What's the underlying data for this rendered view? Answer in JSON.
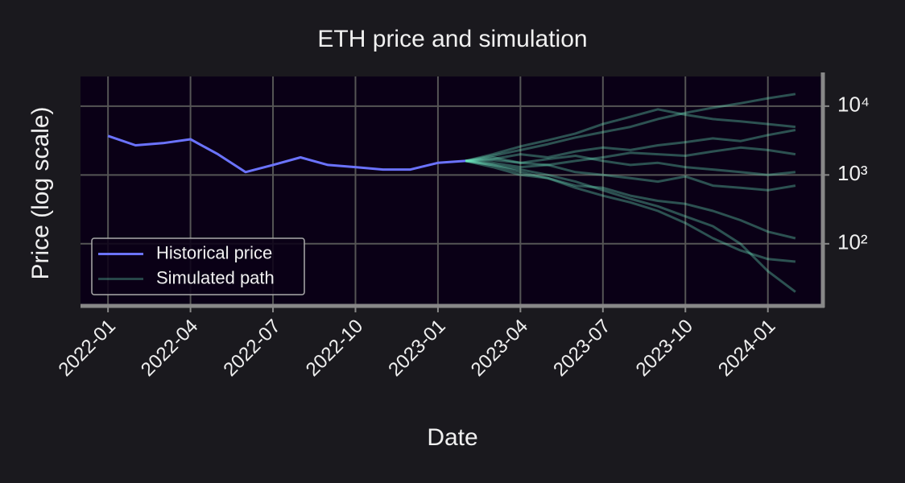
{
  "chart_data": {
    "type": "line",
    "title": "ETH price and simulation",
    "xlabel": "Date",
    "ylabel": "Price (log scale)",
    "xlim": [
      "2021-12",
      "2024-03"
    ],
    "xticks": [
      "2022-01",
      "2022-04",
      "2022-07",
      "2022-10",
      "2023-01",
      "2023-04",
      "2023-07",
      "2023-10",
      "2024-01"
    ],
    "ylim": [
      12.5,
      27000
    ],
    "yscale": "log",
    "yticks": [
      {
        "value": 100,
        "label": "10²"
      },
      {
        "value": 1000,
        "label": "10³"
      },
      {
        "value": 10000,
        "label": "10⁴"
      }
    ],
    "grid": true,
    "legend": "lower left",
    "series": [
      {
        "name": "Historical price",
        "color": "#6b73ff",
        "x": [
          "2022-01",
          "2022-02",
          "2022-03",
          "2022-04",
          "2022-05",
          "2022-06",
          "2022-07",
          "2022-08",
          "2022-09",
          "2022-10",
          "2022-11",
          "2022-12",
          "2023-01",
          "2023-02"
        ],
        "values": [
          3700,
          2700,
          2900,
          3300,
          2000,
          1100,
          1400,
          1800,
          1400,
          1300,
          1200,
          1200,
          1500,
          1600
        ]
      },
      {
        "name": "Simulated path",
        "color": "#6ee8c0",
        "x": [
          "2023-02",
          "2023-03",
          "2023-04",
          "2023-05",
          "2023-06",
          "2023-07",
          "2023-08",
          "2023-09",
          "2023-10",
          "2023-11",
          "2023-12",
          "2024-01",
          "2024-02"
        ],
        "paths": [
          [
            1600,
            1900,
            2300,
            2800,
            3500,
            4200,
            5000,
            6500,
            8000,
            9500,
            11000,
            13000,
            15000
          ],
          [
            1600,
            1400,
            1200,
            1000,
            800,
            600,
            450,
            350,
            250,
            180,
            100,
            40,
            20
          ],
          [
            1600,
            1700,
            2000,
            1800,
            2200,
            2500,
            2300,
            2700,
            3000,
            3400,
            3100,
            3800,
            4500
          ],
          [
            1600,
            1500,
            1300,
            1400,
            1100,
            1000,
            900,
            800,
            950,
            700,
            650,
            600,
            700
          ],
          [
            1600,
            1800,
            1500,
            1700,
            1900,
            1600,
            1400,
            1500,
            1300,
            1200,
            1100,
            1000,
            1100
          ],
          [
            1600,
            1300,
            1000,
            900,
            700,
            650,
            500,
            420,
            380,
            300,
            220,
            150,
            120
          ],
          [
            1600,
            2000,
            2600,
            3200,
            4000,
            5500,
            7000,
            9000,
            7500,
            6500,
            6000,
            5500,
            5000
          ],
          [
            1600,
            1650,
            1500,
            1400,
            1600,
            1800,
            2100,
            2000,
            1900,
            2200,
            2500,
            2300,
            2000
          ],
          [
            1600,
            1400,
            1100,
            900,
            650,
            500,
            400,
            300,
            200,
            120,
            80,
            60,
            55
          ]
        ]
      }
    ]
  }
}
